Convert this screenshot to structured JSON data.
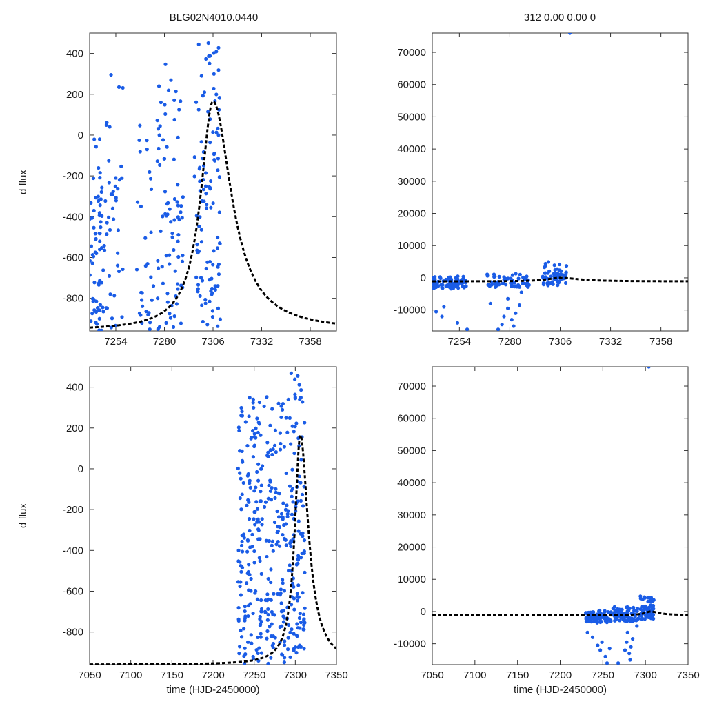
{
  "figure": {
    "title_left": "BLG02N4010.0440",
    "title_right": "312  0.00  0.00  0",
    "point_color": "#1a5ce6",
    "model_color": "#000000"
  },
  "chart_data": [
    {
      "id": "top-left",
      "type": "scatter",
      "title": "BLG02N4010.0440",
      "xlabel": "",
      "ylabel": "d flux",
      "xlim": [
        7240,
        7372
      ],
      "ylim": [
        -960,
        500
      ],
      "xticks": [
        7254,
        7280,
        7306,
        7332,
        7358
      ],
      "yticks": [
        400,
        200,
        0,
        -200,
        -400,
        -600,
        -800
      ],
      "observing_seasons": [
        {
          "start": 7240,
          "end": 7248,
          "ymin": -960,
          "ymax": 0,
          "n": 70
        },
        {
          "start": 7248,
          "end": 7258,
          "ymin": -960,
          "ymax": 330,
          "n": 40
        },
        {
          "start": 7265,
          "end": 7275,
          "ymin": -960,
          "ymax": 150,
          "n": 30
        },
        {
          "start": 7276,
          "end": 7290,
          "ymin": -960,
          "ymax": 370,
          "n": 80
        },
        {
          "start": 7296,
          "end": 7310,
          "ymin": -940,
          "ymax": 480,
          "n": 110
        }
      ],
      "model": {
        "peak_t": 7306,
        "peak_flux": 165,
        "baseline": -960,
        "rise_tau": 8,
        "fall_tau": 12
      }
    },
    {
      "id": "top-right",
      "type": "scatter",
      "title": "312  0.00  0.00  0",
      "xlabel": "",
      "ylabel": "",
      "xlim": [
        7240,
        7372
      ],
      "ylim": [
        -16500,
        76000
      ],
      "xticks": [
        7254,
        7280,
        7306,
        7332,
        7358
      ],
      "yticks": [
        70000,
        60000,
        50000,
        40000,
        30000,
        20000,
        10000,
        0,
        -10000
      ],
      "observing_seasons": [
        {
          "start": 7240,
          "end": 7258,
          "ymin": -3500,
          "ymax": 500,
          "n": 80
        },
        {
          "start": 7268,
          "end": 7290,
          "ymin": -3000,
          "ymax": 1500,
          "n": 60
        },
        {
          "start": 7297,
          "end": 7310,
          "ymin": -2500,
          "ymax": 5000,
          "n": 60
        }
      ],
      "outliers": [
        [
          7242,
          -10500
        ],
        [
          7245,
          -12000
        ],
        [
          7246,
          -9000
        ],
        [
          7253,
          -14000
        ],
        [
          7258,
          -16000
        ],
        [
          7270,
          -8000
        ],
        [
          7274,
          -16000
        ],
        [
          7277,
          -12000
        ],
        [
          7279,
          -9500
        ],
        [
          7281,
          -13000
        ],
        [
          7283,
          -11000
        ],
        [
          7285,
          -8500
        ],
        [
          7282,
          -15000
        ],
        [
          7279,
          -6500
        ],
        [
          7276,
          -14500
        ],
        [
          7286,
          -4500
        ],
        [
          7311,
          76000
        ]
      ],
      "model": {
        "peak_t": 7306,
        "peak_flux": 0,
        "baseline": -1100,
        "rise_tau": 8,
        "fall_tau": 12
      }
    },
    {
      "id": "bottom-left",
      "type": "scatter",
      "title": "",
      "xlabel": "time (HJD-2450000)",
      "ylabel": "d flux",
      "xlim": [
        7050,
        7350
      ],
      "ylim": [
        -960,
        500
      ],
      "xticks": [
        7050,
        7100,
        7150,
        7200,
        7250,
        7300,
        7350
      ],
      "yticks": [
        400,
        200,
        0,
        -200,
        -400,
        -600,
        -800
      ],
      "observing_seasons": [
        {
          "start": 7230,
          "end": 7260,
          "ymin": -960,
          "ymax": 360,
          "n": 160
        },
        {
          "start": 7262,
          "end": 7292,
          "ymin": -960,
          "ymax": 370,
          "n": 130
        },
        {
          "start": 7293,
          "end": 7312,
          "ymin": -940,
          "ymax": 480,
          "n": 110
        }
      ],
      "model": {
        "peak_t": 7306,
        "peak_flux": 165,
        "baseline": -960,
        "rise_tau": 8,
        "fall_tau": 12
      }
    },
    {
      "id": "bottom-right",
      "type": "scatter",
      "title": "",
      "xlabel": "time (HJD-2450000)",
      "ylabel": "",
      "xlim": [
        7050,
        7350
      ],
      "ylim": [
        -16500,
        76000
      ],
      "xticks": [
        7050,
        7100,
        7150,
        7200,
        7250,
        7300,
        7350
      ],
      "yticks": [
        70000,
        60000,
        50000,
        40000,
        30000,
        20000,
        10000,
        0,
        -10000
      ],
      "observing_seasons": [
        {
          "start": 7230,
          "end": 7260,
          "ymin": -3500,
          "ymax": 500,
          "n": 90
        },
        {
          "start": 7262,
          "end": 7292,
          "ymin": -3000,
          "ymax": 1500,
          "n": 80
        },
        {
          "start": 7293,
          "end": 7310,
          "ymin": -2500,
          "ymax": 5000,
          "n": 60
        }
      ],
      "outliers": [
        [
          7232,
          -6500
        ],
        [
          7238,
          -8000
        ],
        [
          7244,
          -10500
        ],
        [
          7247,
          -12000
        ],
        [
          7249,
          -9500
        ],
        [
          7253,
          -14000
        ],
        [
          7255,
          -16000
        ],
        [
          7258,
          -11500
        ],
        [
          7268,
          -16000
        ],
        [
          7276,
          -12000
        ],
        [
          7278,
          -9500
        ],
        [
          7281,
          -13000
        ],
        [
          7283,
          -11000
        ],
        [
          7285,
          -8500
        ],
        [
          7282,
          -15000
        ],
        [
          7279,
          -6500
        ],
        [
          7290,
          -4500
        ],
        [
          7304,
          76000
        ]
      ],
      "model": {
        "peak_t": 7306,
        "peak_flux": 0,
        "baseline": -1100,
        "rise_tau": 8,
        "fall_tau": 12
      }
    }
  ]
}
